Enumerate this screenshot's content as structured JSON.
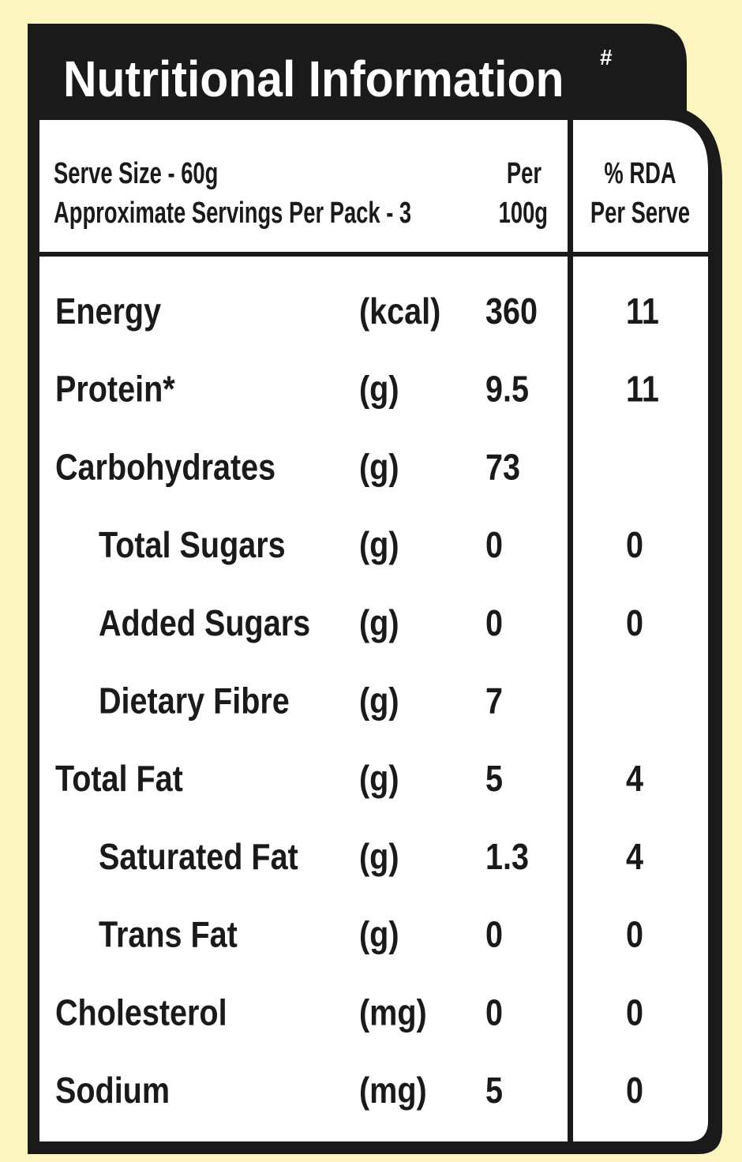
{
  "header": {
    "title": "Nutritional Information",
    "title_mark": "#",
    "serve_size": "Serve Size - 60g",
    "servings": "Approximate Servings Per Pack - 3",
    "col_per_100g": {
      "line1": "Per",
      "line2": "100g"
    },
    "col_rda": {
      "line1": "% RDA",
      "line2": "Per Serve"
    }
  },
  "table": {
    "rows": [
      {
        "name": "Energy",
        "unit": "(kcal)",
        "per_100g": "360",
        "rda": "11"
      },
      {
        "name": "Protein*",
        "unit": "(g)",
        "per_100g": "9.5",
        "rda": "11"
      },
      {
        "name": "Carbohydrates",
        "unit": "(g)",
        "per_100g": "73"
      },
      {
        "name": "Total Sugars",
        "unit": "(g)",
        "per_100g": "0",
        "rda": "0",
        "indent": true
      },
      {
        "name": "Added Sugars",
        "unit": "(g)",
        "per_100g": "0",
        "rda": "0",
        "indent": true
      },
      {
        "name": "Dietary Fibre",
        "unit": "(g)",
        "per_100g": "7",
        "indent": true
      },
      {
        "name": "Total Fat",
        "unit": "(g)",
        "per_100g": "5",
        "rda": "4"
      },
      {
        "name": "Saturated Fat",
        "unit": "(g)",
        "per_100g": "1.3",
        "rda": "4",
        "indent": true
      },
      {
        "name": "Trans Fat",
        "unit": "(g)",
        "per_100g": "0",
        "rda": "0",
        "indent": true
      },
      {
        "name": "Cholesterol",
        "unit": "(mg)",
        "per_100g": "0",
        "rda": "0"
      },
      {
        "name": "Sodium",
        "unit": "(mg)",
        "per_100g": "5",
        "rda": "0"
      }
    ]
  }
}
